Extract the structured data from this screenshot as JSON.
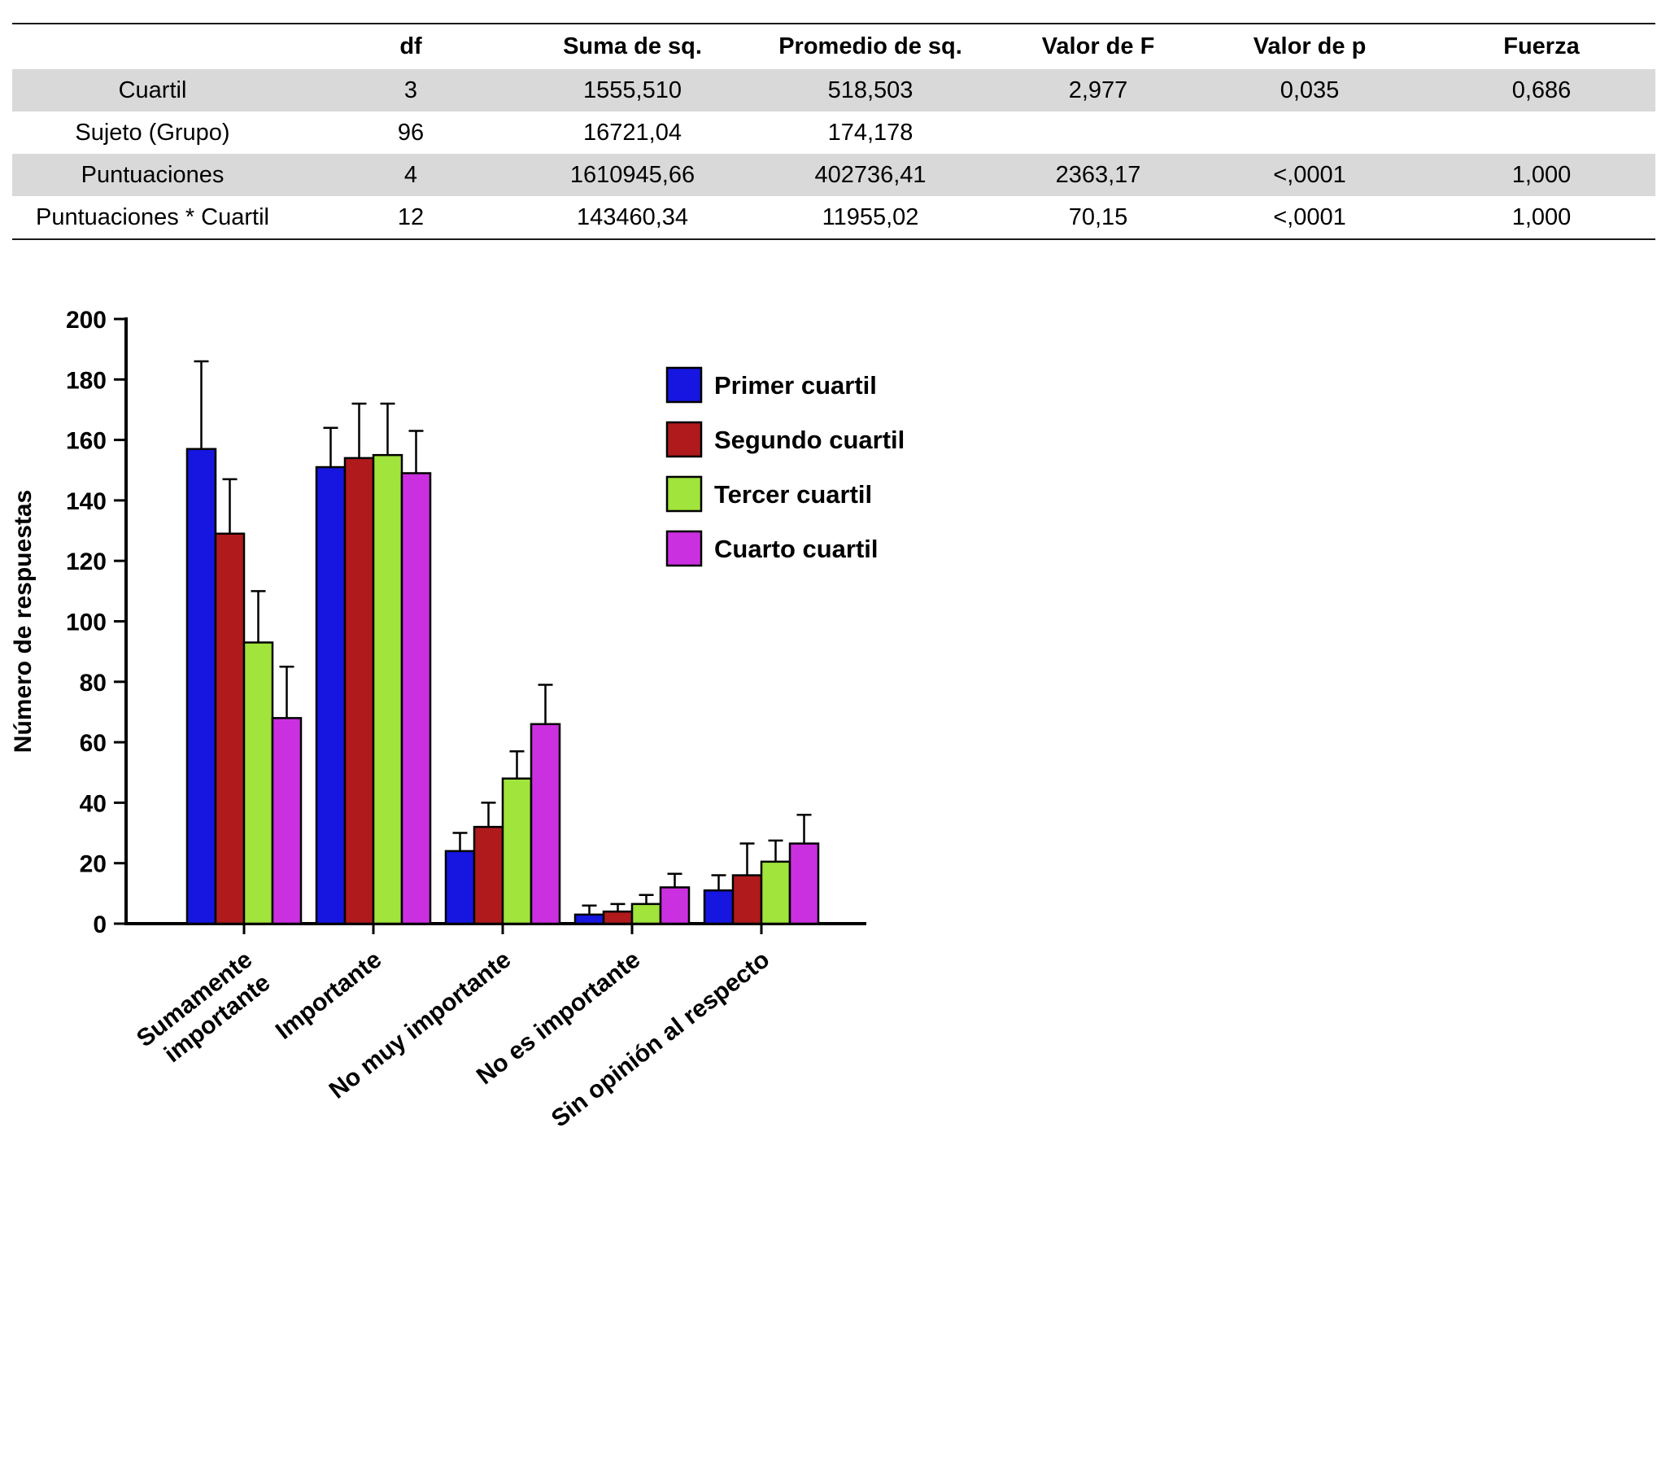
{
  "anova_table": {
    "shaded_row_color": "#d9d9d9",
    "columns": [
      "",
      "df",
      "Suma de sq.",
      "Promedio de sq.",
      "Valor de F",
      "Valor de p",
      "Fuerza"
    ],
    "rows": [
      {
        "label": "Cuartil",
        "values": [
          "3",
          "1555,510",
          "518,503",
          "2,977",
          "0,035",
          "0,686"
        ],
        "shaded": true
      },
      {
        "label": "Sujeto (Grupo)",
        "values": [
          "96",
          "16721,04",
          "174,178",
          "",
          "",
          ""
        ],
        "shaded": false
      },
      {
        "label": "Puntuaciones",
        "values": [
          "4",
          "1610945,66",
          "402736,41",
          "2363,17",
          "<,0001",
          "1,000"
        ],
        "shaded": true
      },
      {
        "label": "Puntuaciones * Cuartil",
        "values": [
          "12",
          "143460,34",
          "11955,02",
          "70,15",
          "<,0001",
          "1,000"
        ],
        "shaded": false
      }
    ]
  },
  "chart_data": {
    "type": "bar",
    "title": "",
    "xlabel": "",
    "ylabel": "Número de respuestas",
    "ylim": [
      0,
      200
    ],
    "ytick_step": 20,
    "grid": false,
    "legend_position": "top-right-inside",
    "error_bars": "upper",
    "categories": [
      "Sumamente\nimportante",
      "Importante",
      "No muy importante",
      "No es importante",
      "Sin opinión al respecto"
    ],
    "series": [
      {
        "name": "Primer cuartil",
        "color": "#1616e0",
        "values": [
          157,
          151,
          24,
          3,
          11
        ],
        "errors": [
          29,
          13,
          6,
          3,
          5
        ]
      },
      {
        "name": "Segundo cuartil",
        "color": "#b01a1c",
        "values": [
          129,
          154,
          32,
          4,
          16
        ],
        "errors": [
          18,
          18,
          8,
          2.5,
          10.5
        ]
      },
      {
        "name": "Tercer cuartil",
        "color": "#a0e43c",
        "values": [
          93,
          155,
          48,
          6.5,
          20.5
        ],
        "errors": [
          17,
          17,
          9,
          3,
          7
        ]
      },
      {
        "name": "Cuarto cuartil",
        "color": "#cb30e0",
        "values": [
          68,
          149,
          66,
          12,
          26.5
        ],
        "errors": [
          17,
          14,
          13,
          4.5,
          9.5
        ]
      }
    ]
  }
}
